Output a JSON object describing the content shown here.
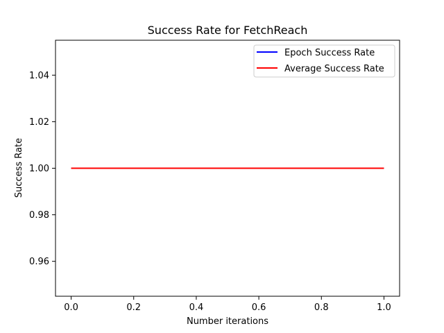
{
  "chart_data": {
    "type": "line",
    "title": "Success Rate for FetchReach",
    "xlabel": "Number iterations",
    "ylabel": "Success Rate",
    "xlim": [
      -0.05,
      1.05
    ],
    "ylim": [
      0.945,
      1.055
    ],
    "x_ticks": [
      0.0,
      0.2,
      0.4,
      0.6,
      0.8,
      1.0
    ],
    "x_tick_labels": [
      "0.0",
      "0.2",
      "0.4",
      "0.6",
      "0.8",
      "1.0"
    ],
    "y_ticks": [
      0.96,
      0.98,
      1.0,
      1.02,
      1.04
    ],
    "y_tick_labels": [
      "0.96",
      "0.98",
      "1.00",
      "1.02",
      "1.04"
    ],
    "grid": false,
    "legend_position": "top-right",
    "series": [
      {
        "name": "Epoch Success Rate",
        "color": "#0000ff",
        "x": [
          0,
          1
        ],
        "y": [
          1.0,
          1.0
        ]
      },
      {
        "name": "Average Success Rate",
        "color": "#ff0000",
        "x": [
          0,
          1
        ],
        "y": [
          1.0,
          1.0
        ]
      }
    ]
  }
}
